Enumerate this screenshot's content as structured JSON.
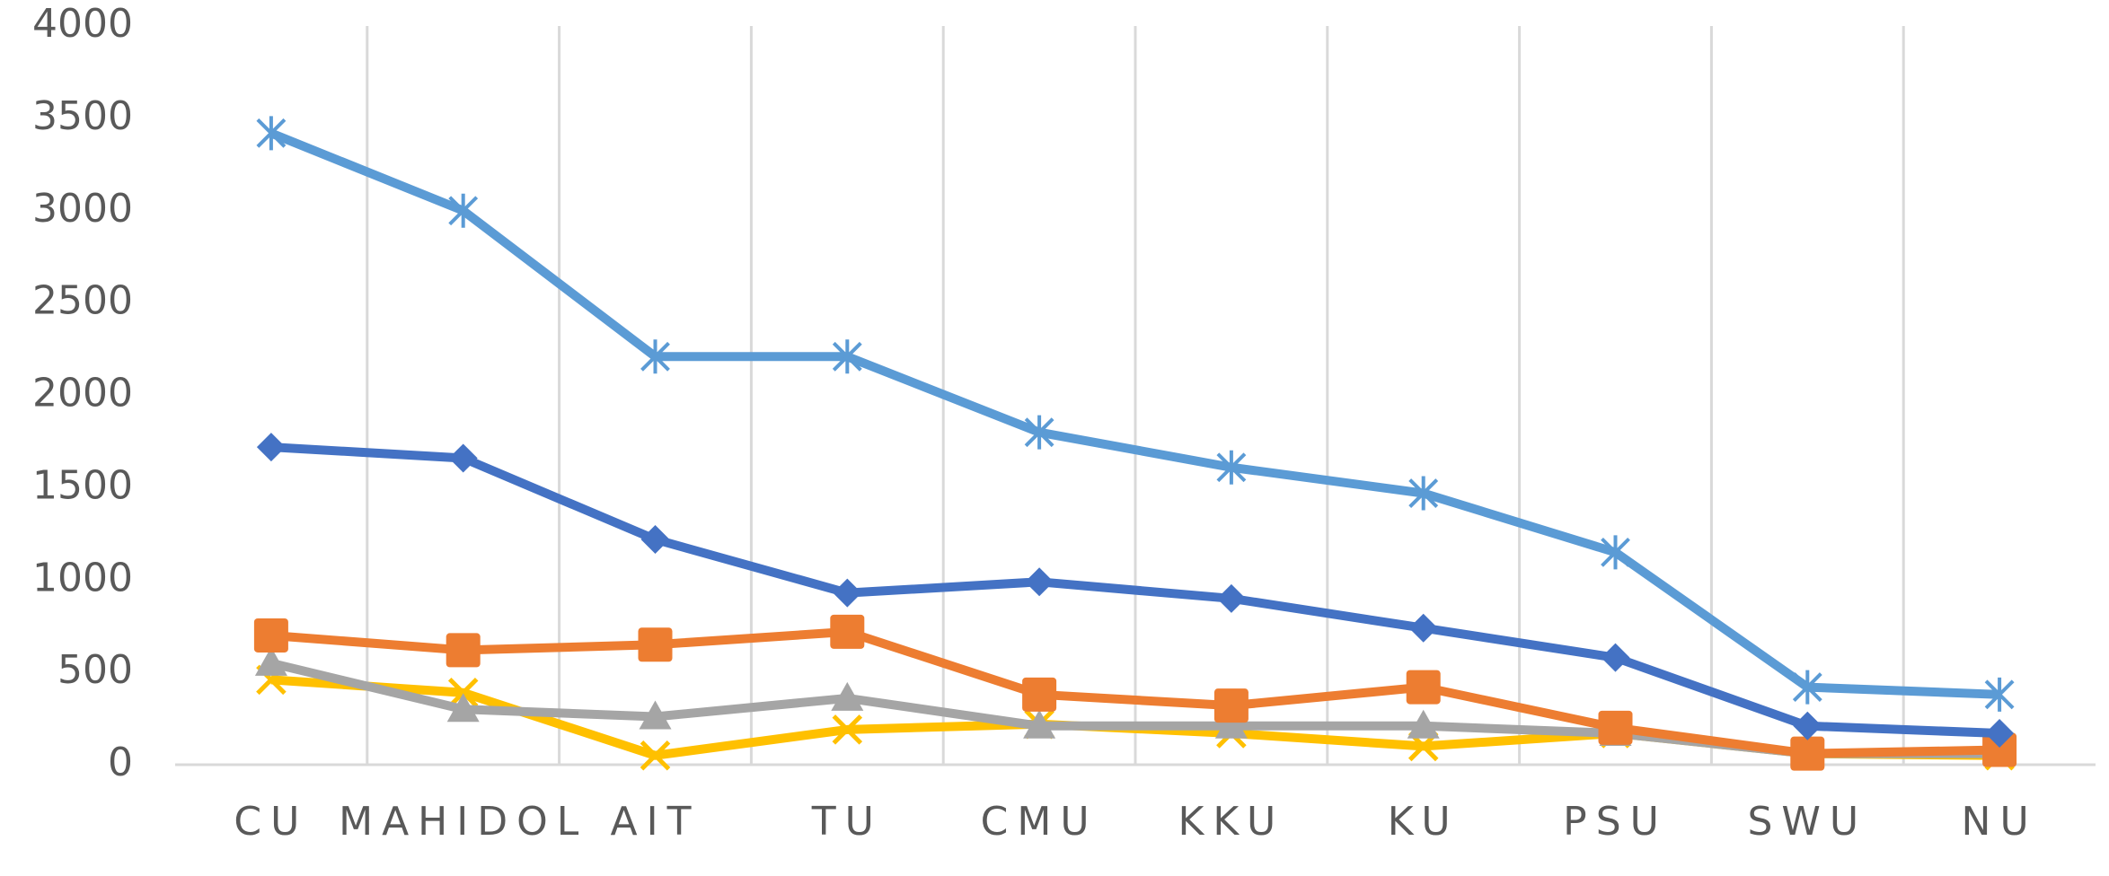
{
  "chart_data": {
    "type": "line",
    "categories": [
      "CU",
      "MAHIDOL",
      "AIT",
      "TU",
      "CMU",
      "KKU",
      "KU",
      "PSU",
      "SWU",
      "NU"
    ],
    "series": [
      {
        "color": "#5b9bd5",
        "marker": "asterisk",
        "values": [
          3420,
          3000,
          2210,
          2210,
          1800,
          1610,
          1470,
          1150,
          420,
          380
        ]
      },
      {
        "color": "#4472c4",
        "marker": "diamond",
        "values": [
          1720,
          1660,
          1220,
          930,
          990,
          900,
          740,
          580,
          210,
          170
        ]
      },
      {
        "color": "#ed7d31",
        "marker": "square",
        "values": [
          700,
          620,
          650,
          720,
          380,
          320,
          420,
          200,
          60,
          80
        ]
      },
      {
        "color": "#a5a5a5",
        "marker": "triangle",
        "values": [
          550,
          300,
          260,
          360,
          210,
          210,
          210,
          170,
          60,
          60
        ]
      },
      {
        "color": "#ffc000",
        "marker": "x",
        "values": [
          460,
          390,
          50,
          190,
          220,
          170,
          100,
          170,
          60,
          50
        ]
      }
    ],
    "ylim": [
      0,
      4000
    ],
    "yticks": [
      0,
      500,
      1000,
      1500,
      2000,
      2500,
      3000,
      3500,
      4000
    ],
    "vertical_grid": true
  }
}
